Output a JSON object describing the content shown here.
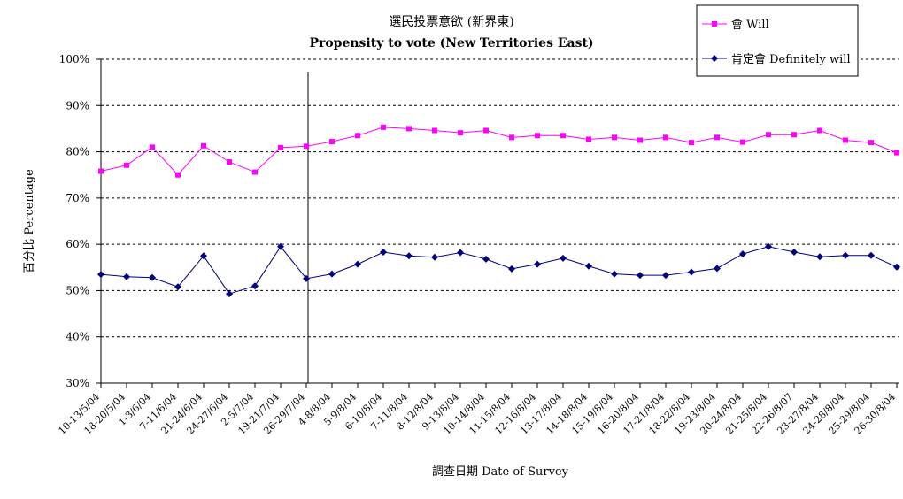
{
  "chart_data": {
    "type": "line",
    "title": "選民投票意欲 (新界東)",
    "subtitle": "Propensity to vote (New Territories East)",
    "xlabel": "調查日期 Date of Survey",
    "ylabel": "百分比 Percentage",
    "ylim": [
      30,
      100
    ],
    "yticks": [
      "30%",
      "40%",
      "50%",
      "60%",
      "70%",
      "80%",
      "90%",
      "100%"
    ],
    "ytick_values": [
      30,
      40,
      50,
      60,
      70,
      80,
      90,
      100
    ],
    "grid": "horizontal dashed",
    "legend_position": "top-right",
    "categories": [
      "10-13/5/04",
      "18-20/5/04",
      "1-3/6/04",
      "7-11/6/04",
      "21-24/6/04",
      "24-27/6/04",
      "2-5/7/04",
      "19-21/7/04",
      "26-29/7/04",
      "4-8/8/04",
      "5-9/8/04",
      "6-10/8/04",
      "7-11/8/04",
      "8-12/8/04",
      "9-13/8/04",
      "10-14/8/04",
      "11-15/8/04",
      "12-16/8/04",
      "13-17/8/04",
      "14-18/8/04",
      "15-19/8/04",
      "16-20/8/04",
      "17-21/8/04",
      "18-22/8/04",
      "19-23/8/04",
      "20-24/8/04",
      "21-25/8/04",
      "22-26/8/07",
      "23-27/8/04",
      "24-28/8/04",
      "25-29/8/04",
      "26-30/8/04"
    ],
    "series": [
      {
        "name": "會 Will",
        "color": "#ff00ff",
        "marker": "square",
        "values": [
          75.8,
          77.1,
          81.0,
          75.0,
          81.3,
          77.8,
          75.6,
          80.9,
          81.2,
          82.2,
          83.5,
          85.3,
          85.0,
          84.6,
          84.1,
          84.6,
          83.1,
          83.5,
          83.5,
          82.7,
          83.1,
          82.5,
          83.1,
          82.0,
          83.1,
          82.1,
          83.7,
          83.7,
          84.6,
          82.5,
          82.0,
          79.8
        ]
      },
      {
        "name": "肯定會 Definitely will",
        "color": "#000080",
        "marker": "diamond",
        "values": [
          53.5,
          53.0,
          52.8,
          50.8,
          57.5,
          49.3,
          51.0,
          59.5,
          52.6,
          53.6,
          55.7,
          58.3,
          57.5,
          57.2,
          58.2,
          56.8,
          54.7,
          55.7,
          57.0,
          55.3,
          53.6,
          53.3,
          53.3,
          54.0,
          54.8,
          57.9,
          59.5,
          58.3,
          57.3,
          57.6,
          57.6,
          55.1
        ]
      }
    ],
    "annotation": "vertical line at 26-29/7/04"
  }
}
